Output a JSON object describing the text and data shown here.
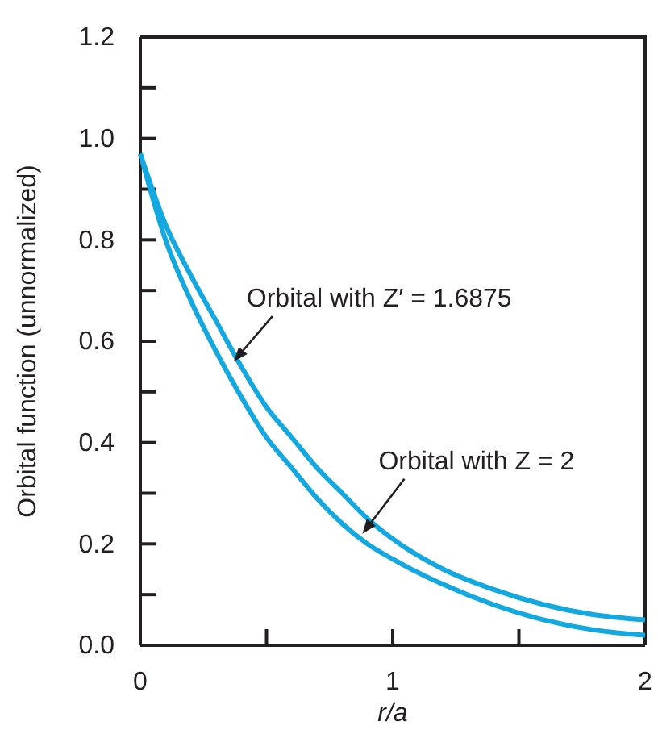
{
  "chart_data": {
    "type": "line",
    "xlabel": "r/a",
    "ylabel": "Orbital function (unnormalized)",
    "xlim": [
      0,
      2
    ],
    "ylim": [
      0,
      1.2
    ],
    "xticks": [
      0,
      {
        "value": 0.5,
        "label": null
      },
      1,
      {
        "value": 1.5,
        "label": null
      },
      2
    ],
    "yticks": [
      {
        "value": 0,
        "label": "0.0"
      },
      {
        "value": 0.1,
        "label": null
      },
      {
        "value": 0.2,
        "label": "0.2"
      },
      {
        "value": 0.3,
        "label": null
      },
      {
        "value": 0.4,
        "label": "0.4"
      },
      {
        "value": 0.5,
        "label": null
      },
      {
        "value": 0.6,
        "label": "0.6"
      },
      {
        "value": 0.7,
        "label": null
      },
      {
        "value": 0.8,
        "label": "0.8"
      },
      {
        "value": 0.9,
        "label": null
      },
      {
        "value": 1.0,
        "label": "1.0"
      },
      {
        "value": 1.1,
        "label": null
      },
      {
        "value": 1.2,
        "label": "1.2"
      }
    ],
    "x": [
      0,
      0.1,
      0.2,
      0.3,
      0.4,
      0.5,
      0.6,
      0.7,
      0.8,
      0.9,
      1.0,
      1.2,
      1.4,
      1.6,
      1.8,
      2.0
    ],
    "series": [
      {
        "color": "#14a8e0",
        "values": [
          0.97,
          0.83,
          0.73,
          0.64,
          0.55,
          0.47,
          0.41,
          0.35,
          0.3,
          0.25,
          0.21,
          0.15,
          0.11,
          0.08,
          0.06,
          0.05
        ]
      },
      {
        "color": "#14a8e0",
        "values": [
          0.97,
          0.8,
          0.68,
          0.58,
          0.49,
          0.41,
          0.35,
          0.29,
          0.24,
          0.2,
          0.17,
          0.12,
          0.08,
          0.05,
          0.03,
          0.02
        ]
      }
    ],
    "annotations": [
      {
        "text": "Orbital with Z′ = 1.6875",
        "x": 0.37,
        "y": 0.56
      },
      {
        "text": "Orbital with Z = 2",
        "x": 0.88,
        "y": 0.22
      }
    ],
    "marker": "none",
    "line_style": "solid"
  }
}
